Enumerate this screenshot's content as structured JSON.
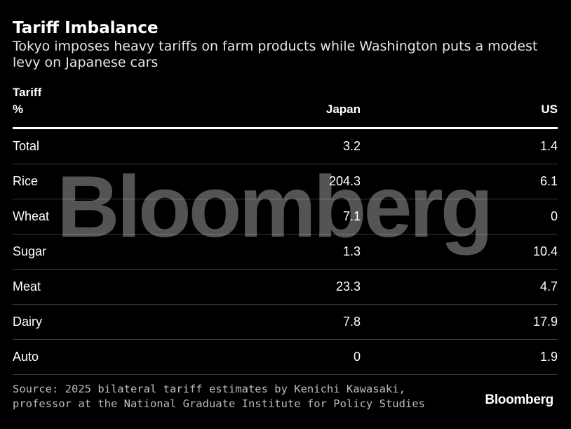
{
  "header": {
    "title": "Tariff Imbalance",
    "subtitle": "Tokyo imposes heavy tariffs on farm products while Washington puts a modest levy on Japanese cars"
  },
  "watermark": "Bloomberg",
  "chart_data": {
    "type": "table",
    "columns": [
      "Tariff\n%",
      "Japan",
      "US"
    ],
    "column_header": {
      "label_line1": "Tariff",
      "label_line2": "%",
      "japan": "Japan",
      "us": "US"
    },
    "rows": [
      {
        "label": "Total",
        "japan": "3.2",
        "us": "1.4"
      },
      {
        "label": "Rice",
        "japan": "204.3",
        "us": "6.1"
      },
      {
        "label": "Wheat",
        "japan": "7.1",
        "us": "0"
      },
      {
        "label": "Sugar",
        "japan": "1.3",
        "us": "10.4"
      },
      {
        "label": "Meat",
        "japan": "23.3",
        "us": "4.7"
      },
      {
        "label": "Dairy",
        "japan": "7.8",
        "us": "17.9"
      },
      {
        "label": "Auto",
        "japan": "0",
        "us": "1.9"
      }
    ]
  },
  "footer": {
    "source": "Source: 2025 bilateral tariff estimates by Kenichi Kawasaki, professor at the National Graduate Institute for Policy Studies",
    "brand": "Bloomberg"
  }
}
